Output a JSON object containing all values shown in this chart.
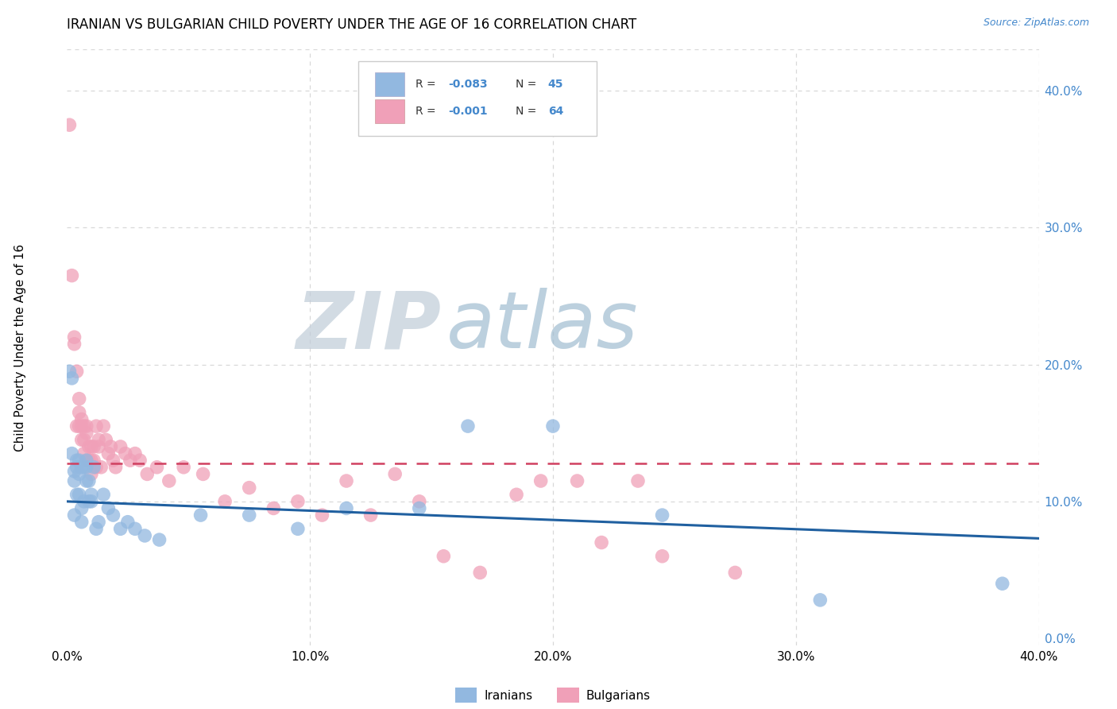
{
  "title": "IRANIAN VS BULGARIAN CHILD POVERTY UNDER THE AGE OF 16 CORRELATION CHART",
  "source": "Source: ZipAtlas.com",
  "ylabel": "Child Poverty Under the Age of 16",
  "xlim": [
    0.0,
    0.4
  ],
  "ylim": [
    -0.005,
    0.43
  ],
  "xticks": [
    0.0,
    0.1,
    0.2,
    0.3,
    0.4
  ],
  "xtick_labels": [
    "0.0%",
    "10.0%",
    "20.0%",
    "30.0%",
    "40.0%"
  ],
  "yticks_right": [
    0.0,
    0.1,
    0.2,
    0.3,
    0.4
  ],
  "ytick_labels_right": [
    "0.0%",
    "10.0%",
    "20.0%",
    "30.0%",
    "40.0%"
  ],
  "iranians_color": "#92b8e0",
  "bulgarians_color": "#f0a0b8",
  "trend_iranian_color": "#2060a0",
  "trend_bulgarian_color": "#d04060",
  "background_color": "#ffffff",
  "grid_color": "#d8d8d8",
  "watermark_zip_color": "#c8d4e0",
  "watermark_atlas_color": "#a8c0d8",
  "iranians_x": [
    0.001,
    0.002,
    0.002,
    0.003,
    0.003,
    0.003,
    0.004,
    0.004,
    0.004,
    0.005,
    0.005,
    0.005,
    0.006,
    0.006,
    0.006,
    0.007,
    0.007,
    0.008,
    0.008,
    0.008,
    0.009,
    0.009,
    0.01,
    0.01,
    0.011,
    0.012,
    0.013,
    0.015,
    0.017,
    0.019,
    0.022,
    0.025,
    0.028,
    0.032,
    0.038,
    0.055,
    0.075,
    0.095,
    0.115,
    0.145,
    0.165,
    0.2,
    0.245,
    0.31,
    0.385
  ],
  "iranians_y": [
    0.195,
    0.19,
    0.135,
    0.122,
    0.115,
    0.09,
    0.13,
    0.125,
    0.105,
    0.13,
    0.12,
    0.105,
    0.095,
    0.085,
    0.125,
    0.125,
    0.1,
    0.13,
    0.125,
    0.115,
    0.115,
    0.1,
    0.105,
    0.1,
    0.125,
    0.08,
    0.085,
    0.105,
    0.095,
    0.09,
    0.08,
    0.085,
    0.08,
    0.075,
    0.072,
    0.09,
    0.09,
    0.08,
    0.095,
    0.095,
    0.155,
    0.155,
    0.09,
    0.028,
    0.04
  ],
  "bulgarians_x": [
    0.001,
    0.002,
    0.003,
    0.003,
    0.004,
    0.004,
    0.005,
    0.005,
    0.005,
    0.006,
    0.006,
    0.006,
    0.007,
    0.007,
    0.007,
    0.008,
    0.008,
    0.008,
    0.009,
    0.009,
    0.01,
    0.01,
    0.01,
    0.011,
    0.011,
    0.012,
    0.012,
    0.013,
    0.013,
    0.014,
    0.015,
    0.016,
    0.017,
    0.018,
    0.019,
    0.02,
    0.022,
    0.024,
    0.026,
    0.028,
    0.03,
    0.033,
    0.037,
    0.042,
    0.048,
    0.056,
    0.065,
    0.075,
    0.085,
    0.095,
    0.105,
    0.115,
    0.125,
    0.135,
    0.145,
    0.155,
    0.17,
    0.185,
    0.195,
    0.21,
    0.22,
    0.235,
    0.245,
    0.275
  ],
  "bulgarians_y": [
    0.375,
    0.265,
    0.22,
    0.215,
    0.195,
    0.155,
    0.175,
    0.165,
    0.155,
    0.16,
    0.155,
    0.145,
    0.155,
    0.145,
    0.135,
    0.155,
    0.15,
    0.13,
    0.14,
    0.13,
    0.14,
    0.13,
    0.12,
    0.14,
    0.13,
    0.125,
    0.155,
    0.145,
    0.14,
    0.125,
    0.155,
    0.145,
    0.135,
    0.14,
    0.13,
    0.125,
    0.14,
    0.135,
    0.13,
    0.135,
    0.13,
    0.12,
    0.125,
    0.115,
    0.125,
    0.12,
    0.1,
    0.11,
    0.095,
    0.1,
    0.09,
    0.115,
    0.09,
    0.12,
    0.1,
    0.06,
    0.048,
    0.105,
    0.115,
    0.115,
    0.07,
    0.115,
    0.06,
    0.048
  ],
  "trend_ir_start_y": 0.1,
  "trend_ir_end_y": 0.073,
  "trend_bul_start_y": 0.128,
  "trend_bul_end_y": 0.128
}
